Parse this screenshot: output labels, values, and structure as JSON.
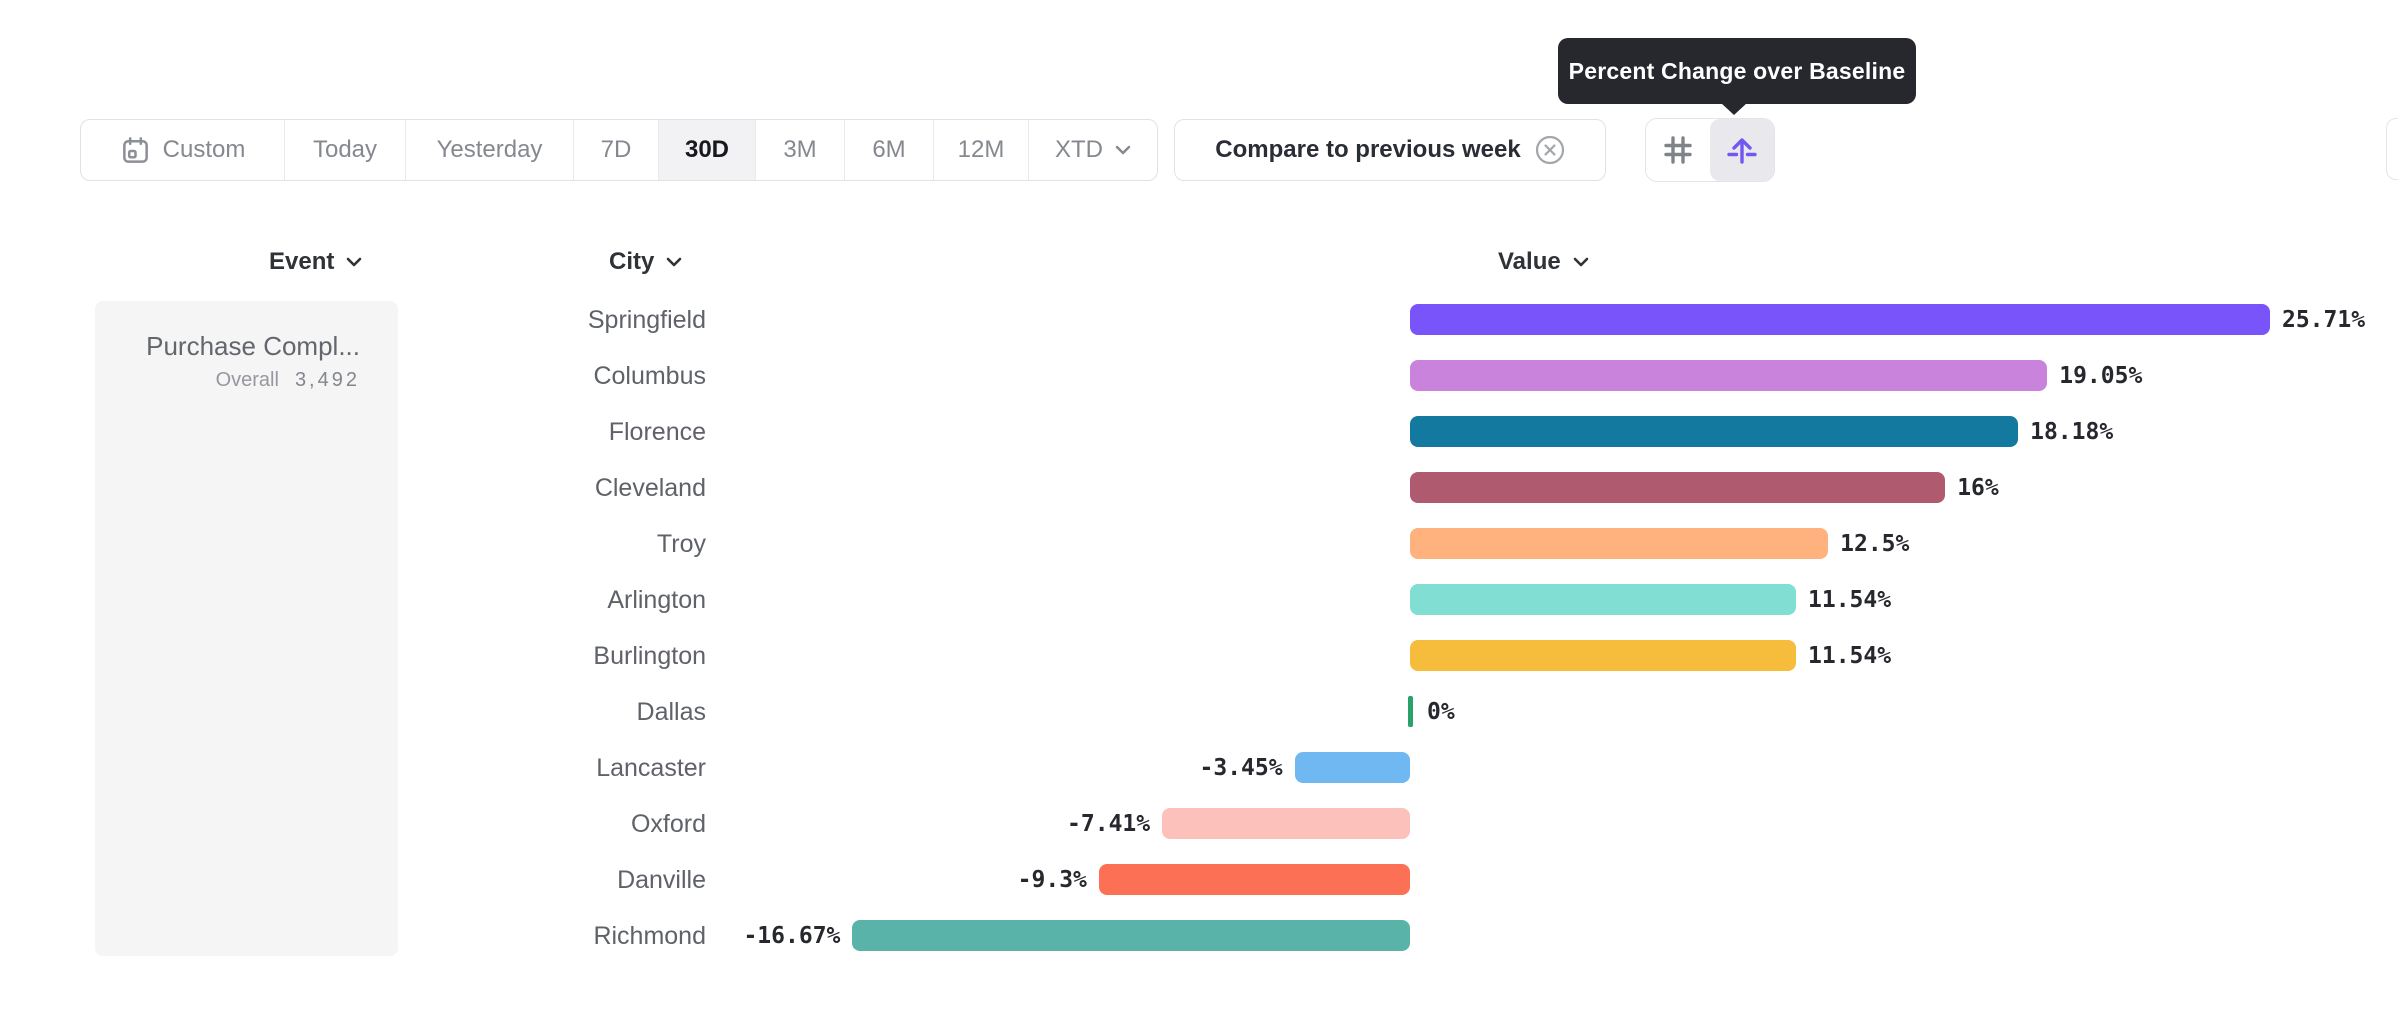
{
  "tooltip": {
    "text": "Percent Change over Baseline"
  },
  "toolbar": {
    "selected": "30D",
    "date_ranges": [
      {
        "label": "Custom",
        "icon": "calendar-icon"
      },
      {
        "label": "Today"
      },
      {
        "label": "Yesterday"
      },
      {
        "label": "7D"
      },
      {
        "label": "30D"
      },
      {
        "label": "3M"
      },
      {
        "label": "6M"
      },
      {
        "label": "12M"
      },
      {
        "label": "XTD",
        "icon": "chevron-down-icon"
      }
    ],
    "compare": {
      "label": "Compare to previous week",
      "icon": "remove-circle-icon"
    },
    "view_toggle": {
      "options": [
        "absolute-numbers",
        "percent-change-over-baseline"
      ],
      "active": "percent-change-over-baseline",
      "accent_color": "#7257f0"
    }
  },
  "columns": {
    "event": "Event",
    "city": "City",
    "value": "Value"
  },
  "event_panel": {
    "event_name": "Purchase Compl...",
    "overall_label": "Overall",
    "overall_value": "3,492"
  },
  "chart_data": {
    "type": "bar",
    "orientation": "horizontal",
    "title": "Percent Change over Baseline",
    "xlabel": "Value",
    "ylabel": "City",
    "baseline": 0,
    "value_suffix": "%",
    "categories": [
      "Springfield",
      "Columbus",
      "Florence",
      "Cleveland",
      "Troy",
      "Arlington",
      "Burlington",
      "Dallas",
      "Lancaster",
      "Oxford",
      "Danville",
      "Richmond"
    ],
    "values": [
      25.71,
      19.05,
      18.18,
      16,
      12.5,
      11.54,
      11.54,
      0,
      -3.45,
      -7.41,
      -9.3,
      -16.67
    ],
    "labels": [
      "25.71%",
      "19.05%",
      "18.18%",
      "16%",
      "12.5%",
      "11.54%",
      "11.54%",
      "0%",
      "-3.45%",
      "-7.41%",
      "-9.3%",
      "-16.67%"
    ],
    "colors": [
      "#7954fa",
      "#c983dc",
      "#13799e",
      "#b05a70",
      "#ffb27d",
      "#80ded3",
      "#f6bd3d",
      "#2aa168",
      "#70b8f1",
      "#fcc1ba",
      "#fc7156",
      "#59b3a9"
    ]
  }
}
